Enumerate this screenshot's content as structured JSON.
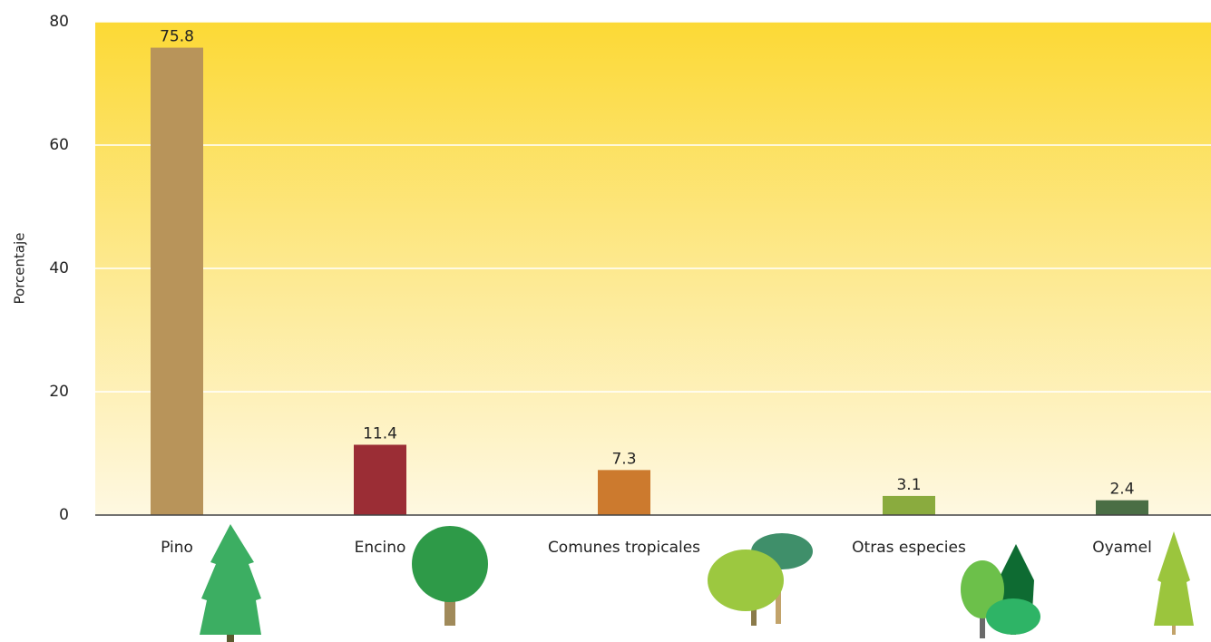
{
  "chart_data": {
    "type": "bar",
    "y_label": "Porcentaje",
    "categories": [
      "Pino",
      "Encino",
      "Comunes tropicales",
      "Otras especies",
      "Oyamel"
    ],
    "values": [
      75.8,
      11.4,
      7.3,
      3.1,
      2.4
    ],
    "colors": [
      "#b8945a",
      "#9b2d35",
      "#cc7a2e",
      "#8aab3e",
      "#4a6e45"
    ],
    "ylim": [
      0,
      80
    ],
    "yticks": [
      0,
      20,
      40,
      60,
      80
    ],
    "grid": true
  }
}
